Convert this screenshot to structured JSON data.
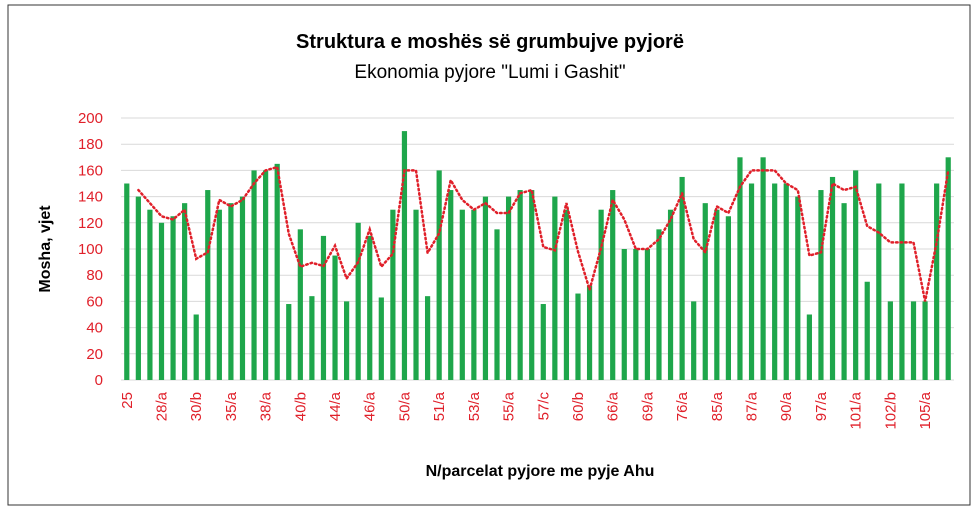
{
  "chart_data": {
    "type": "bar",
    "title": "Struktura e moshës së grumbujve pyjorë",
    "subtitle": "Ekonomia pyjore \"Lumi i Gashit\"",
    "x_label": "N/parcelat pyjore me pyje Ahu",
    "y_label": "Mosha, vjet",
    "categories": [
      "25",
      null,
      null,
      "28/a",
      null,
      null,
      "30/b",
      null,
      null,
      "35/a",
      null,
      null,
      "38/a",
      null,
      null,
      "40/b",
      null,
      null,
      "44/a",
      null,
      null,
      "46/a",
      null,
      null,
      "50/a",
      null,
      null,
      "51/a",
      null,
      null,
      "53/a",
      null,
      null,
      "55/a",
      null,
      null,
      "57/c",
      null,
      null,
      "60/b",
      null,
      null,
      "66/a",
      null,
      null,
      "69/a",
      null,
      null,
      "76/a",
      null,
      null,
      "85/a",
      null,
      null,
      "87/a",
      null,
      null,
      "90/a",
      null,
      null,
      "97/a",
      null,
      null,
      "101/a",
      null,
      null,
      "102/b",
      null,
      null,
      "105/a",
      null,
      null
    ],
    "values": [
      150,
      140,
      130,
      120,
      125,
      135,
      50,
      145,
      130,
      135,
      140,
      160,
      160,
      165,
      58,
      115,
      64,
      110,
      95,
      60,
      120,
      110,
      63,
      130,
      190,
      130,
      64,
      160,
      145,
      130,
      130,
      140,
      115,
      140,
      145,
      145,
      58,
      140,
      130,
      66,
      72,
      130,
      145,
      100,
      100,
      100,
      115,
      130,
      155,
      60,
      135,
      130,
      125,
      170,
      150,
      170,
      150,
      150,
      140,
      50,
      145,
      155,
      135,
      160,
      75,
      150,
      60,
      150,
      60,
      60,
      150,
      170
    ],
    "color": "#1ea64b",
    "trendline": {
      "type": "moving_average",
      "period": 2,
      "color": "#e0202a"
    },
    "ylim": [
      0,
      200
    ],
    "yticks": [
      0,
      20,
      40,
      60,
      80,
      100,
      120,
      140,
      160,
      180,
      200
    ],
    "grid": true,
    "tick_label_color": "#e0202a"
  }
}
